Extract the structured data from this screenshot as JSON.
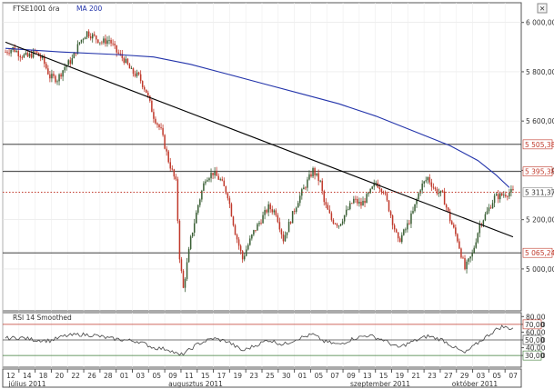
{
  "chart_data": [
    {
      "type": "candlestick",
      "legend": {
        "symbol": "FTSE100",
        "interval": "1 óra",
        "ma_label": "MA 200"
      },
      "colors": {
        "bull": "#3a5f35",
        "bear": "#c0392b",
        "ma": "#2233aa",
        "trend": "#000000",
        "hline": "#222222",
        "last": "#c0392b"
      },
      "ylim": [
        4830,
        6080
      ],
      "y_ticks": [
        5000,
        5200,
        5400,
        5600,
        5800,
        6000
      ],
      "y_tick_labels": [
        "5 000,00",
        "5 200,00",
        "5 400,00",
        "5 600,00",
        "5 800,00",
        "6 000,00"
      ],
      "levels": [
        {
          "value": 5505.38,
          "label": "5 505,38"
        },
        {
          "value": 5395.38,
          "label": "5 395,38"
        },
        {
          "value": 5065.24,
          "label": "5 065,24"
        }
      ],
      "last_price": {
        "value": 5311.37,
        "label": "5 311,37"
      },
      "x_ticks": [
        "12",
        "14",
        "18",
        "20",
        "22",
        "26",
        "28",
        "01",
        "03",
        "05",
        "09",
        "11",
        "15",
        "17",
        "19",
        "23",
        "25",
        "30",
        "01",
        "05",
        "07",
        "09",
        "13",
        "15",
        "19",
        "21",
        "23",
        "27",
        "29",
        "03",
        "05",
        "07"
      ],
      "months": [
        "július 2011",
        "augusztus 2011",
        "szeptember 2011",
        "október 2011"
      ],
      "close_path": [
        [
          0,
          5880
        ],
        [
          4,
          5895
        ],
        [
          8,
          5870
        ],
        [
          12,
          5860
        ],
        [
          16,
          5880
        ],
        [
          20,
          5850
        ],
        [
          24,
          5780
        ],
        [
          28,
          5770
        ],
        [
          32,
          5820
        ],
        [
          36,
          5850
        ],
        [
          40,
          5920
        ],
        [
          44,
          5960
        ],
        [
          48,
          5940
        ],
        [
          52,
          5920
        ],
        [
          56,
          5930
        ],
        [
          60,
          5880
        ],
        [
          64,
          5850
        ],
        [
          68,
          5800
        ],
        [
          72,
          5780
        ],
        [
          76,
          5720
        ],
        [
          80,
          5620
        ],
        [
          84,
          5560
        ],
        [
          88,
          5440
        ],
        [
          92,
          5350
        ],
        [
          94,
          5050
        ],
        [
          96,
          4920
        ],
        [
          98,
          5020
        ],
        [
          100,
          5120
        ],
        [
          104,
          5260
        ],
        [
          108,
          5370
        ],
        [
          112,
          5390
        ],
        [
          116,
          5360
        ],
        [
          120,
          5300
        ],
        [
          124,
          5150
        ],
        [
          128,
          5040
        ],
        [
          130,
          5080
        ],
        [
          134,
          5150
        ],
        [
          138,
          5200
        ],
        [
          142,
          5250
        ],
        [
          146,
          5230
        ],
        [
          150,
          5120
        ],
        [
          154,
          5200
        ],
        [
          158,
          5280
        ],
        [
          162,
          5340
        ],
        [
          166,
          5400
        ],
        [
          170,
          5350
        ],
        [
          172,
          5270
        ],
        [
          176,
          5200
        ],
        [
          180,
          5180
        ],
        [
          184,
          5230
        ],
        [
          188,
          5280
        ],
        [
          192,
          5260
        ],
        [
          196,
          5300
        ],
        [
          200,
          5350
        ],
        [
          204,
          5320
        ],
        [
          208,
          5220
        ],
        [
          212,
          5110
        ],
        [
          216,
          5160
        ],
        [
          220,
          5230
        ],
        [
          224,
          5330
        ],
        [
          228,
          5370
        ],
        [
          232,
          5320
        ],
        [
          236,
          5300
        ],
        [
          240,
          5200
        ],
        [
          244,
          5120
        ],
        [
          248,
          5000
        ],
        [
          252,
          5060
        ],
        [
          256,
          5180
        ],
        [
          260,
          5230
        ],
        [
          264,
          5290
        ],
        [
          268,
          5300
        ],
        [
          272,
          5311
        ]
      ],
      "ma_200": [
        [
          0,
          5895
        ],
        [
          30,
          5880
        ],
        [
          60,
          5870
        ],
        [
          80,
          5860
        ],
        [
          100,
          5830
        ],
        [
          120,
          5790
        ],
        [
          140,
          5750
        ],
        [
          160,
          5710
        ],
        [
          180,
          5670
        ],
        [
          200,
          5620
        ],
        [
          220,
          5560
        ],
        [
          240,
          5500
        ],
        [
          255,
          5440
        ],
        [
          265,
          5380
        ],
        [
          272,
          5330
        ]
      ],
      "trend_line": {
        "start": [
          0,
          5920
        ],
        "end": [
          274,
          5130
        ]
      }
    },
    {
      "type": "line",
      "legend": {
        "label": "RSI 14 Smoothed"
      },
      "ylim": [
        15,
        85
      ],
      "y_ticks": [
        30,
        40,
        50,
        60,
        70,
        80
      ],
      "y_tick_labels": [
        "30,00",
        "40,00",
        "50,00",
        "60,00",
        "70,00",
        "80,00"
      ],
      "levels": [
        {
          "value": 70,
          "label": "70,00",
          "color": "#c0392b"
        },
        {
          "value": 50,
          "label": "50,00",
          "color": "#444444"
        },
        {
          "value": 30,
          "label": "30,00",
          "color": "#3a7a35"
        }
      ],
      "points": [
        [
          0,
          52
        ],
        [
          8,
          53
        ],
        [
          16,
          50
        ],
        [
          24,
          49
        ],
        [
          32,
          55
        ],
        [
          40,
          57
        ],
        [
          48,
          56
        ],
        [
          56,
          52
        ],
        [
          64,
          50
        ],
        [
          72,
          48
        ],
        [
          80,
          40
        ],
        [
          88,
          38
        ],
        [
          94,
          30
        ],
        [
          98,
          35
        ],
        [
          104,
          45
        ],
        [
          112,
          52
        ],
        [
          120,
          48
        ],
        [
          128,
          36
        ],
        [
          134,
          42
        ],
        [
          142,
          50
        ],
        [
          150,
          44
        ],
        [
          158,
          52
        ],
        [
          166,
          57
        ],
        [
          172,
          48
        ],
        [
          180,
          44
        ],
        [
          188,
          52
        ],
        [
          196,
          56
        ],
        [
          204,
          50
        ],
        [
          212,
          40
        ],
        [
          220,
          48
        ],
        [
          228,
          55
        ],
        [
          236,
          50
        ],
        [
          244,
          38
        ],
        [
          248,
          33
        ],
        [
          256,
          48
        ],
        [
          264,
          62
        ],
        [
          268,
          67
        ],
        [
          272,
          65
        ]
      ]
    }
  ]
}
